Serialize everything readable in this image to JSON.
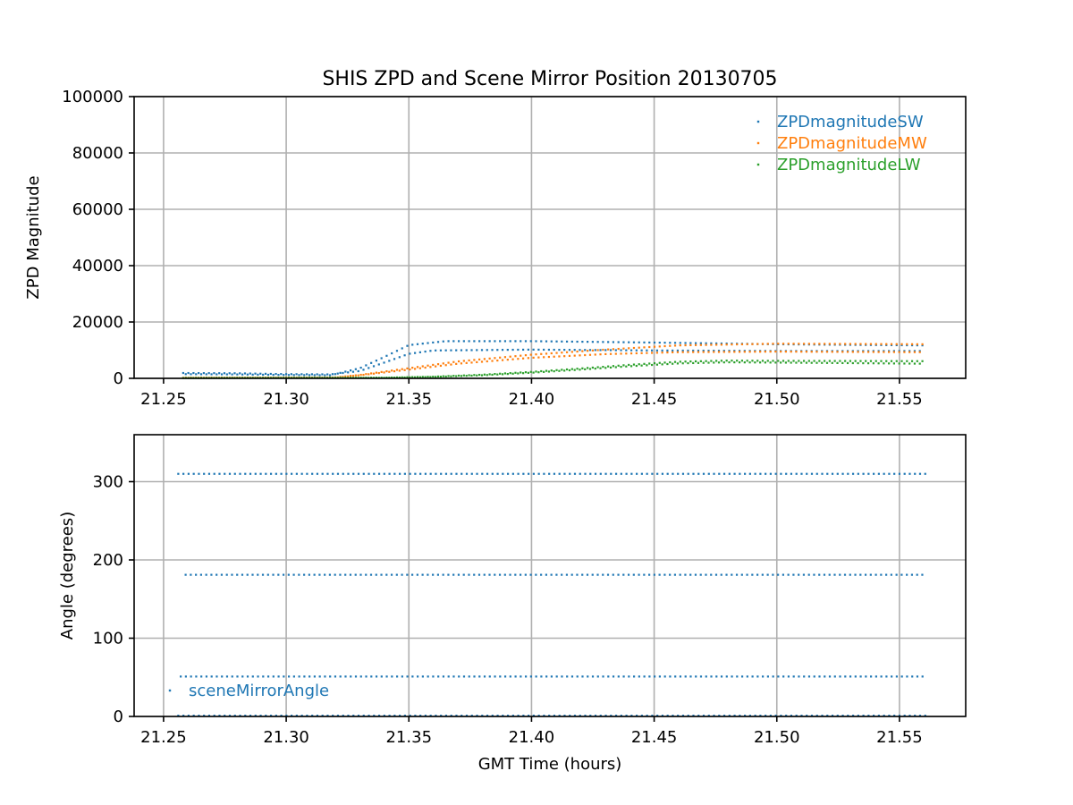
{
  "figure": {
    "title": "SHIS ZPD and Scene Mirror Position 20130705"
  },
  "chart_data": [
    {
      "type": "scatter",
      "title": "SHIS ZPD and Scene Mirror Position 20130705",
      "xlabel": "",
      "ylabel": "ZPD Magnitude",
      "xlim": [
        21.238,
        21.577
      ],
      "ylim": [
        0,
        100000
      ],
      "xticks": [
        "21.25",
        "21.30",
        "21.35",
        "21.40",
        "21.45",
        "21.50",
        "21.55"
      ],
      "yticks": [
        "0",
        "20000",
        "40000",
        "60000",
        "80000",
        "100000"
      ],
      "grid": true,
      "legend": "top-right",
      "series": [
        {
          "name": "ZPDmagnitudeSW",
          "color": "#1f77b4",
          "bands": [
            {
              "points": [
                [
                  21.258,
                  1900
                ],
                [
                  21.28,
                  1800
                ],
                [
                  21.3,
                  1500
                ],
                [
                  21.318,
                  1400
                ],
                [
                  21.33,
                  2600
                ],
                [
                  21.34,
                  5600
                ],
                [
                  21.35,
                  8700
                ],
                [
                  21.36,
                  9900
                ],
                [
                  21.4,
                  10200
                ],
                [
                  21.45,
                  9900
                ],
                [
                  21.5,
                  9700
                ],
                [
                  21.56,
                  9700
                ]
              ]
            },
            {
              "points": [
                [
                  21.258,
                  1500
                ],
                [
                  21.28,
                  1400
                ],
                [
                  21.3,
                  1200
                ],
                [
                  21.318,
                  1100
                ],
                [
                  21.33,
                  3600
                ],
                [
                  21.34,
                  7600
                ],
                [
                  21.35,
                  11800
                ],
                [
                  21.365,
                  13200
                ],
                [
                  21.4,
                  13200
                ],
                [
                  21.45,
                  12700
                ],
                [
                  21.5,
                  12100
                ],
                [
                  21.56,
                  11700
                ]
              ]
            }
          ]
        },
        {
          "name": "ZPDmagnitudeMW",
          "color": "#ff7f0e",
          "bands": [
            {
              "points": [
                [
                  21.258,
                  200
                ],
                [
                  21.32,
                  300
                ],
                [
                  21.33,
                  1100
                ],
                [
                  21.35,
                  3100
                ],
                [
                  21.37,
                  5200
                ],
                [
                  21.4,
                  7300
                ],
                [
                  21.43,
                  8600
                ],
                [
                  21.46,
                  9300
                ],
                [
                  21.5,
                  9500
                ],
                [
                  21.56,
                  9300
                ]
              ]
            },
            {
              "points": [
                [
                  21.258,
                  250
                ],
                [
                  21.32,
                  350
                ],
                [
                  21.33,
                  1200
                ],
                [
                  21.35,
                  3600
                ],
                [
                  21.37,
                  6000
                ],
                [
                  21.4,
                  8400
                ],
                [
                  21.43,
                  10200
                ],
                [
                  21.46,
                  11700
                ],
                [
                  21.5,
                  12300
                ],
                [
                  21.56,
                  12100
                ]
              ]
            }
          ]
        },
        {
          "name": "ZPDmagnitudeLW",
          "color": "#2ca02c",
          "bands": [
            {
              "points": [
                [
                  21.258,
                  100
                ],
                [
                  21.34,
                  200
                ],
                [
                  21.36,
                  500
                ],
                [
                  21.38,
                  1100
                ],
                [
                  21.4,
                  2000
                ],
                [
                  21.42,
                  3100
                ],
                [
                  21.44,
                  4300
                ],
                [
                  21.46,
                  5300
                ],
                [
                  21.48,
                  5700
                ],
                [
                  21.5,
                  5600
                ],
                [
                  21.56,
                  5200
                ]
              ]
            },
            {
              "points": [
                [
                  21.258,
                  120
                ],
                [
                  21.34,
                  250
                ],
                [
                  21.36,
                  600
                ],
                [
                  21.38,
                  1300
                ],
                [
                  21.4,
                  2300
                ],
                [
                  21.42,
                  3500
                ],
                [
                  21.44,
                  4800
                ],
                [
                  21.46,
                  5900
                ],
                [
                  21.48,
                  6300
                ],
                [
                  21.5,
                  6200
                ],
                [
                  21.56,
                  6100
                ]
              ]
            }
          ]
        }
      ]
    },
    {
      "type": "scatter",
      "title": "",
      "xlabel": "GMT Time (hours)",
      "ylabel": "Angle (degrees)",
      "xlim": [
        21.238,
        21.577
      ],
      "ylim": [
        0,
        360
      ],
      "xticks": [
        "21.25",
        "21.30",
        "21.35",
        "21.40",
        "21.45",
        "21.50",
        "21.55"
      ],
      "yticks": [
        "0",
        "100",
        "200",
        "300"
      ],
      "grid": true,
      "legend": "bottom-left",
      "series": [
        {
          "name": "sceneMirrorAngle",
          "color": "#1f77b4",
          "levels": [
            {
              "y": 310,
              "x_start": 21.256,
              "x_end": 21.562
            },
            {
              "y": 181,
              "x_start": 21.259,
              "x_end": 21.561
            },
            {
              "y": 51,
              "x_start": 21.257,
              "x_end": 21.561
            },
            {
              "y": 1,
              "x_start": 21.256,
              "x_end": 21.562
            }
          ]
        }
      ]
    }
  ]
}
